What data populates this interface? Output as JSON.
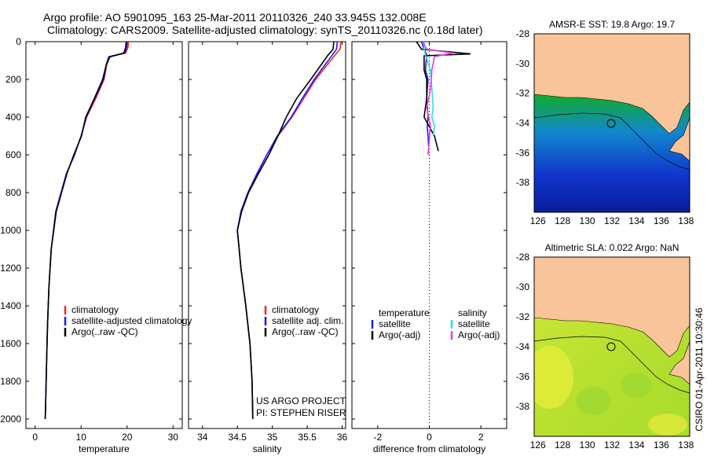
{
  "title": {
    "line1": "Argo profile: AO 5901095_163 25-Mar-2011 20110326_240 33.945S 132.008E",
    "line2": "Climatology: CARS2009. Satellite-adjusted climatology: synTS_20110326.nc (0.18d later)"
  },
  "side_caption": "CSIRO 01-Apr-2011 10:30:46",
  "project_note": {
    "line1": "US ARGO PROJECT",
    "line2": "PI: STEPHEN RISER"
  },
  "colors": {
    "climatology": "#ff2020",
    "satellite": "#1a1aff",
    "argo": "#000000",
    "satellite_salinity": "#33dddd",
    "argo_salinity": "#e040e0",
    "land": "#f9c49a"
  },
  "chart_data": [
    {
      "type": "line",
      "id": "temperature",
      "xlabel": "temperature",
      "ylabel": "",
      "xlim": [
        -2,
        32
      ],
      "ylim": [
        2050,
        0
      ],
      "xticks": [
        0,
        10,
        20,
        30
      ],
      "yticks": [
        0,
        200,
        400,
        600,
        800,
        1000,
        1200,
        1400,
        1600,
        1800,
        2000
      ],
      "legend": [
        "climatology",
        "satellite-adjusted climatology",
        "Argo(..raw -QC)"
      ],
      "series": [
        {
          "name": "climatology",
          "color": "#ff2020",
          "x": [
            20.3,
            20.2,
            19.7,
            16.2,
            15.6,
            15.0,
            13.2,
            11.2,
            10.0,
            8.5,
            6.8,
            4.5,
            3.5,
            3.0,
            2.7,
            2.5,
            2.3,
            2.2
          ],
          "y": [
            0,
            30,
            60,
            80,
            120,
            200,
            300,
            400,
            500,
            600,
            700,
            900,
            1100,
            1300,
            1500,
            1700,
            1900,
            2000
          ]
        },
        {
          "name": "satellite-adjusted climatology",
          "color": "#1a1aff",
          "x": [
            20.0,
            19.9,
            19.5,
            16.0,
            15.5,
            14.9,
            13.0,
            11.1,
            10.0,
            8.6,
            6.8,
            4.5,
            3.5,
            3.0,
            2.7,
            2.5,
            2.3,
            2.2
          ],
          "y": [
            0,
            30,
            60,
            80,
            120,
            200,
            300,
            400,
            500,
            600,
            700,
            900,
            1100,
            1300,
            1500,
            1700,
            1900,
            2000
          ]
        },
        {
          "name": "Argo(..raw -QC)",
          "color": "#000000",
          "x": [
            19.8,
            19.7,
            19.3,
            16.3,
            15.5,
            14.7,
            12.9,
            11.0,
            10.1,
            8.4,
            6.9,
            4.6,
            3.5,
            3.0,
            2.7,
            2.5,
            2.3,
            2.2
          ],
          "y": [
            0,
            30,
            60,
            80,
            120,
            200,
            300,
            400,
            500,
            600,
            700,
            900,
            1100,
            1300,
            1500,
            1700,
            1900,
            2000
          ]
        }
      ]
    },
    {
      "type": "line",
      "id": "salinity",
      "xlabel": "salinity",
      "ylabel": "",
      "xlim": [
        33.8,
        36.05
      ],
      "ylim": [
        2050,
        0
      ],
      "xticks": [
        34,
        34.5,
        35,
        35.5,
        36
      ],
      "xticklabels": [
        "34",
        "34.5",
        "35",
        "35.5",
        "36"
      ],
      "legend": [
        "climatology",
        "satellite adj. clim.",
        "Argo(..raw -QC)"
      ],
      "series": [
        {
          "name": "climatology",
          "color": "#ff2020",
          "x": [
            35.98,
            35.97,
            35.9,
            35.62,
            35.45,
            35.28,
            35.08,
            34.92,
            34.78,
            34.65,
            34.55,
            34.5,
            34.55,
            34.62,
            34.68,
            34.71,
            34.72
          ],
          "y": [
            0,
            40,
            70,
            200,
            300,
            400,
            500,
            600,
            700,
            800,
            900,
            1000,
            1200,
            1400,
            1600,
            1800,
            2000
          ]
        },
        {
          "name": "satellite adj. clim.",
          "color": "#1a1aff",
          "x": [
            35.93,
            35.92,
            35.86,
            35.6,
            35.43,
            35.27,
            35.07,
            34.92,
            34.78,
            34.65,
            34.55,
            34.5,
            34.55,
            34.62,
            34.68,
            34.71,
            34.72
          ],
          "y": [
            0,
            40,
            70,
            200,
            300,
            400,
            500,
            600,
            700,
            800,
            900,
            1000,
            1200,
            1400,
            1600,
            1800,
            2000
          ]
        },
        {
          "name": "Argo(..raw -QC)",
          "color": "#000000",
          "x": [
            35.88,
            35.87,
            35.8,
            35.55,
            35.35,
            35.2,
            35.08,
            34.95,
            34.8,
            34.66,
            34.56,
            34.5,
            34.55,
            34.62,
            34.68,
            34.71,
            34.72
          ],
          "y": [
            0,
            40,
            70,
            200,
            300,
            400,
            500,
            600,
            700,
            800,
            900,
            1000,
            1200,
            1400,
            1600,
            1800,
            2000
          ]
        }
      ]
    },
    {
      "type": "line",
      "id": "difference",
      "xlabel": "difference from climatology",
      "ylabel": "",
      "xlim": [
        -3,
        3
      ],
      "ylim": [
        2050,
        0
      ],
      "xticks": [
        -2,
        0,
        2
      ],
      "legend_left_title": "temperature",
      "legend_right_title": "salinity",
      "legend": [
        "satellite",
        "Argo(-adj)",
        "satellite",
        "Argo(-adj)"
      ],
      "series": [
        {
          "name": "satellite",
          "group": "temperature",
          "color": "#1a1aff",
          "x": [
            -0.3,
            -0.2,
            -0.1,
            -0.15,
            -0.05,
            -0.1,
            -0.05,
            -0.08,
            -0.05,
            -0.03
          ],
          "y": [
            0,
            40,
            70,
            150,
            200,
            300,
            400,
            450,
            500,
            550
          ]
        },
        {
          "name": "Argo(-adj)",
          "group": "temperature",
          "color": "#000000",
          "x": [
            -0.5,
            -0.3,
            1.6,
            -0.2,
            -0.2,
            -0.1,
            -0.1,
            -0.2,
            0.0,
            0.2,
            0.35
          ],
          "y": [
            0,
            40,
            65,
            75,
            150,
            200,
            300,
            400,
            450,
            500,
            580
          ]
        },
        {
          "name": "satellite",
          "group": "salinity",
          "color": "#33dddd",
          "x": [
            -0.2,
            -0.2,
            -0.15,
            0.05,
            0.1,
            0.15,
            0.1,
            0.2,
            0.15
          ],
          "y": [
            0,
            40,
            70,
            150,
            250,
            350,
            400,
            450,
            500
          ]
        },
        {
          "name": "Argo(-adj)",
          "group": "salinity",
          "color": "#e040e0",
          "x": [
            -0.25,
            -0.1,
            0.9,
            0.2,
            0.1,
            0.05,
            -0.1,
            0.05,
            0.0,
            -0.05
          ],
          "y": [
            0,
            40,
            60,
            80,
            150,
            250,
            350,
            450,
            520,
            600
          ]
        }
      ]
    },
    {
      "type": "heatmap",
      "id": "sst-map",
      "title": "AMSR-E SST: 19.8 Argo: 19.7",
      "xlim": [
        125.7,
        138.3
      ],
      "ylim": [
        -40,
        -28
      ],
      "xticks": [
        126,
        128,
        130,
        132,
        134,
        136,
        138
      ],
      "yticks": [
        -28,
        -30,
        -32,
        -34,
        -36,
        -38
      ],
      "marker": {
        "lon": 132.008,
        "lat": -33.945
      }
    },
    {
      "type": "heatmap",
      "id": "sla-map",
      "title": "Altimetric SLA: 0.022 Argo: NaN",
      "xlim": [
        125.7,
        138.3
      ],
      "ylim": [
        -40,
        -28
      ],
      "xticks": [
        126,
        128,
        130,
        132,
        134,
        136,
        138
      ],
      "yticks": [
        -28,
        -30,
        -32,
        -34,
        -36,
        -38
      ],
      "marker": {
        "lon": 132.008,
        "lat": -33.945
      }
    }
  ]
}
